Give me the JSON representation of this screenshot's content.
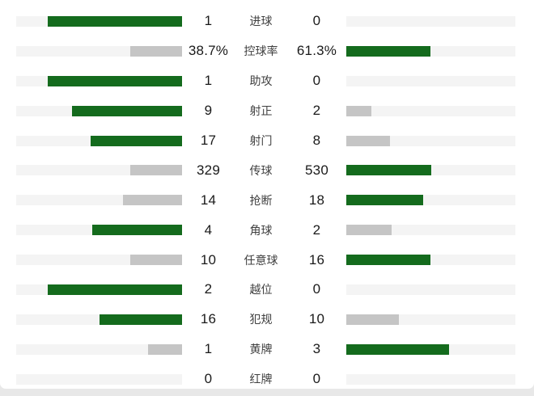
{
  "colors": {
    "bar_green": "#146b1d",
    "bar_gray": "#c5c5c5",
    "bar_track": "#f4f4f4",
    "card_bg": "#ffffff",
    "page_bg": "#e8e8e8",
    "value_text": "#1a1a1a",
    "label_text": "#404040"
  },
  "layout_hints": {
    "bar_max_fraction_of_track": 0.81,
    "left_bars_grow": "right-to-left",
    "right_bars_grow": "left-to-right",
    "winner_bar_color": "green",
    "loser_bar_color": "gray",
    "zero_value_bar": "hidden"
  },
  "chart_data": {
    "type": "bar",
    "subtype": "mirrored head-to-head match statistics",
    "categories": [
      "进球",
      "控球率",
      "助攻",
      "射正",
      "射门",
      "传球",
      "抢断",
      "角球",
      "任意球",
      "越位",
      "犯规",
      "黄牌",
      "红牌"
    ],
    "series": [
      {
        "name": "left-team",
        "values": [
          1,
          38.7,
          1,
          9,
          17,
          329,
          14,
          4,
          10,
          2,
          16,
          1,
          0
        ],
        "display": [
          "1",
          "38.7%",
          "1",
          "9",
          "17",
          "329",
          "14",
          "4",
          "10",
          "2",
          "16",
          "1",
          "0"
        ]
      },
      {
        "name": "right-team",
        "values": [
          0,
          61.3,
          0,
          2,
          8,
          530,
          18,
          2,
          16,
          0,
          10,
          3,
          0
        ],
        "display": [
          "0",
          "61.3%",
          "0",
          "2",
          "8",
          "530",
          "18",
          "2",
          "16",
          "0",
          "10",
          "3",
          "0"
        ]
      }
    ],
    "title": "",
    "legend": "none",
    "grid": "off"
  },
  "rows": [
    {
      "label": "进球",
      "left": {
        "text": "1",
        "value": 1,
        "pct": 81.0,
        "color": "green"
      },
      "right": {
        "text": "0",
        "value": 0,
        "pct": 0,
        "color": "none"
      }
    },
    {
      "label": "控球率",
      "left": {
        "text": "38.7%",
        "value": 38.7,
        "pct": 31.3,
        "color": "gray"
      },
      "right": {
        "text": "61.3%",
        "value": 61.3,
        "pct": 49.7,
        "color": "green"
      }
    },
    {
      "label": "助攻",
      "left": {
        "text": "1",
        "value": 1,
        "pct": 81.0,
        "color": "green"
      },
      "right": {
        "text": "0",
        "value": 0,
        "pct": 0,
        "color": "none"
      }
    },
    {
      "label": "射正",
      "left": {
        "text": "9",
        "value": 9,
        "pct": 66.3,
        "color": "green"
      },
      "right": {
        "text": "2",
        "value": 2,
        "pct": 14.7,
        "color": "gray"
      }
    },
    {
      "label": "射门",
      "left": {
        "text": "17",
        "value": 17,
        "pct": 55.1,
        "color": "green"
      },
      "right": {
        "text": "8",
        "value": 8,
        "pct": 25.9,
        "color": "gray"
      }
    },
    {
      "label": "传球",
      "left": {
        "text": "329",
        "value": 329,
        "pct": 31.0,
        "color": "gray"
      },
      "right": {
        "text": "530",
        "value": 530,
        "pct": 50.0,
        "color": "green"
      }
    },
    {
      "label": "抢断",
      "left": {
        "text": "14",
        "value": 14,
        "pct": 35.4,
        "color": "gray"
      },
      "right": {
        "text": "18",
        "value": 18,
        "pct": 45.6,
        "color": "green"
      }
    },
    {
      "label": "角球",
      "left": {
        "text": "4",
        "value": 4,
        "pct": 54.0,
        "color": "green"
      },
      "right": {
        "text": "2",
        "value": 2,
        "pct": 27.0,
        "color": "gray"
      }
    },
    {
      "label": "任意球",
      "left": {
        "text": "10",
        "value": 10,
        "pct": 31.2,
        "color": "gray"
      },
      "right": {
        "text": "16",
        "value": 16,
        "pct": 49.8,
        "color": "green"
      }
    },
    {
      "label": "越位",
      "left": {
        "text": "2",
        "value": 2,
        "pct": 81.0,
        "color": "green"
      },
      "right": {
        "text": "0",
        "value": 0,
        "pct": 0,
        "color": "none"
      }
    },
    {
      "label": "犯规",
      "left": {
        "text": "16",
        "value": 16,
        "pct": 49.8,
        "color": "green"
      },
      "right": {
        "text": "10",
        "value": 10,
        "pct": 31.2,
        "color": "gray"
      }
    },
    {
      "label": "黄牌",
      "left": {
        "text": "1",
        "value": 1,
        "pct": 20.3,
        "color": "gray"
      },
      "right": {
        "text": "3",
        "value": 3,
        "pct": 60.8,
        "color": "green"
      }
    },
    {
      "label": "红牌",
      "left": {
        "text": "0",
        "value": 0,
        "pct": 0,
        "color": "none"
      },
      "right": {
        "text": "0",
        "value": 0,
        "pct": 0,
        "color": "none"
      }
    }
  ]
}
